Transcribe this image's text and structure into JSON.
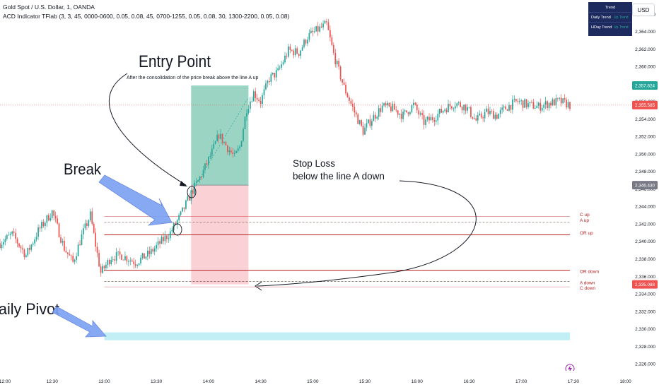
{
  "header": {
    "symbol": "Gold Spot / U.S. Dollar, 1, OANDA",
    "indicator": "ACD Indicator TFlab (3, 3, 45, 0000-0600, 0.05, 0.08, 45, 0700-1255, 0.05, 0.08, 30, 1300-2200, 0.05, 0.08)"
  },
  "currency_label": "USD",
  "trend_table": {
    "title": "Trend",
    "rows": [
      {
        "label": "Daily Trend",
        "value": "Up Trend"
      },
      {
        "label": "HDay Trend",
        "value": "Up Trend"
      }
    ]
  },
  "colors": {
    "up": "#26a69a",
    "down": "#ef5350",
    "level_line": "#b71c1c",
    "pivot_band": "#b2ebf2",
    "profit_zone": "#7bc6b0",
    "loss_zone": "#f9c6cb",
    "arrow": "#7b9ff2"
  },
  "annotations": {
    "entry_title": "Entry Point",
    "entry_note": "After the consolidation of the price break above the line A up",
    "break": "Break",
    "stop_loss_1": "Stop Loss",
    "stop_loss_2": "below the line A down",
    "daily_pivot": "aily Pivot"
  },
  "chart_data": {
    "type": "candlestick",
    "title": "",
    "xlabel": "",
    "ylabel": "",
    "y_axis": {
      "range": [
        2325.2,
        2367.6
      ],
      "ticks": [
        "2,326.000",
        "2,328.000",
        "2,330.000",
        "2,332.000",
        "2,334.000",
        "2,336.000",
        "2,338.000",
        "2,340.000",
        "2,342.000",
        "2,344.000",
        "2,346.000",
        "2,348.000",
        "2,350.000",
        "2,352.000",
        "2,354.000",
        "2,356.000",
        "2,358.000",
        "2,360.000",
        "2,362.000",
        "2,364.000",
        "2,366.000"
      ]
    },
    "x_axis": {
      "ticks": [
        {
          "label": "12:00",
          "min": 720
        },
        {
          "label": "12:30",
          "min": 750
        },
        {
          "label": "13:00",
          "min": 780
        },
        {
          "label": "13:30",
          "min": 810
        },
        {
          "label": "14:00",
          "min": 840
        },
        {
          "label": "14:30",
          "min": 870
        },
        {
          "label": "15:00",
          "min": 900
        },
        {
          "label": "15:30",
          "min": 930
        },
        {
          "label": "16:00",
          "min": 960
        },
        {
          "label": "16:30",
          "min": 990
        },
        {
          "label": "17:00",
          "min": 1020
        },
        {
          "label": "17:30",
          "min": 1050
        },
        {
          "label": "18:00",
          "min": 1080
        }
      ],
      "range_min": [
        720,
        1083
      ]
    },
    "price_badges": [
      {
        "value": "2,357.824",
        "price": 2357.824,
        "color": "#26a69a"
      },
      {
        "value": "2,355.585",
        "price": 2355.585,
        "color": "#ef5350"
      },
      {
        "value": "2,346.430",
        "price": 2346.43,
        "color": "#787b86"
      },
      {
        "value": "2,335.088",
        "price": 2335.088,
        "color": "#ef5350"
      }
    ],
    "levels": [
      {
        "label": "C up",
        "price": 2342.85,
        "style": "solid-thin"
      },
      {
        "label": "A up",
        "price": 2342.2,
        "style": "dashed"
      },
      {
        "label": "OR up",
        "price": 2340.75,
        "style": "solid"
      },
      {
        "label": "OR down",
        "price": 2336.7,
        "style": "solid"
      },
      {
        "label": "A down",
        "price": 2335.4,
        "style": "dashed"
      },
      {
        "label": "C down",
        "price": 2334.8,
        "style": "solid-thin"
      }
    ],
    "levels_range_min": [
      780,
      1048
    ],
    "pivot_band": {
      "from": 2328.7,
      "to": 2329.6,
      "range_min": [
        780,
        1048
      ]
    },
    "position": {
      "range_min": [
        830,
        863
      ],
      "entry": 2346.43,
      "take_profit": 2357.824,
      "stop_loss": 2335.088
    },
    "path_points": [
      [
        720,
        2339.8
      ],
      [
        727,
        2340.8
      ],
      [
        735,
        2338.4
      ],
      [
        742,
        2341.2
      ],
      [
        750,
        2343.4
      ],
      [
        757,
        2339.2
      ],
      [
        762,
        2337.6
      ],
      [
        767,
        2340.6
      ],
      [
        772,
        2343.0
      ],
      [
        775,
        2339.6
      ],
      [
        778,
        2336.4
      ],
      [
        784,
        2338.2
      ],
      [
        790,
        2338.4
      ],
      [
        798,
        2337.6
      ],
      [
        806,
        2338.6
      ],
      [
        812,
        2339.8
      ],
      [
        818,
        2341.0
      ],
      [
        824,
        2343.0
      ],
      [
        830,
        2345.5
      ],
      [
        836,
        2347.6
      ],
      [
        842,
        2350.2
      ],
      [
        846,
        2352.2
      ],
      [
        850,
        2351.0
      ],
      [
        855,
        2349.6
      ],
      [
        858,
        2350.8
      ],
      [
        862,
        2355.2
      ],
      [
        866,
        2357.0
      ],
      [
        870,
        2356.0
      ],
      [
        875,
        2358.6
      ],
      [
        880,
        2359.4
      ],
      [
        886,
        2361.8
      ],
      [
        892,
        2361.6
      ],
      [
        897,
        2363.4
      ],
      [
        903,
        2364.2
      ],
      [
        908,
        2364.8
      ],
      [
        912,
        2361.4
      ],
      [
        918,
        2357.6
      ],
      [
        924,
        2354.8
      ],
      [
        929,
        2352.6
      ],
      [
        934,
        2354.0
      ],
      [
        940,
        2355.4
      ],
      [
        946,
        2355.2
      ],
      [
        952,
        2354.4
      ],
      [
        958,
        2355.6
      ],
      [
        964,
        2353.6
      ],
      [
        970,
        2354.2
      ],
      [
        976,
        2355.2
      ],
      [
        982,
        2355.8
      ],
      [
        988,
        2355.4
      ],
      [
        994,
        2353.8
      ],
      [
        1000,
        2354.8
      ],
      [
        1006,
        2354.4
      ],
      [
        1012,
        2355.4
      ],
      [
        1018,
        2356.0
      ],
      [
        1024,
        2355.6
      ],
      [
        1030,
        2355.4
      ],
      [
        1036,
        2355.8
      ],
      [
        1042,
        2356.0
      ],
      [
        1048,
        2355.6
      ]
    ]
  }
}
